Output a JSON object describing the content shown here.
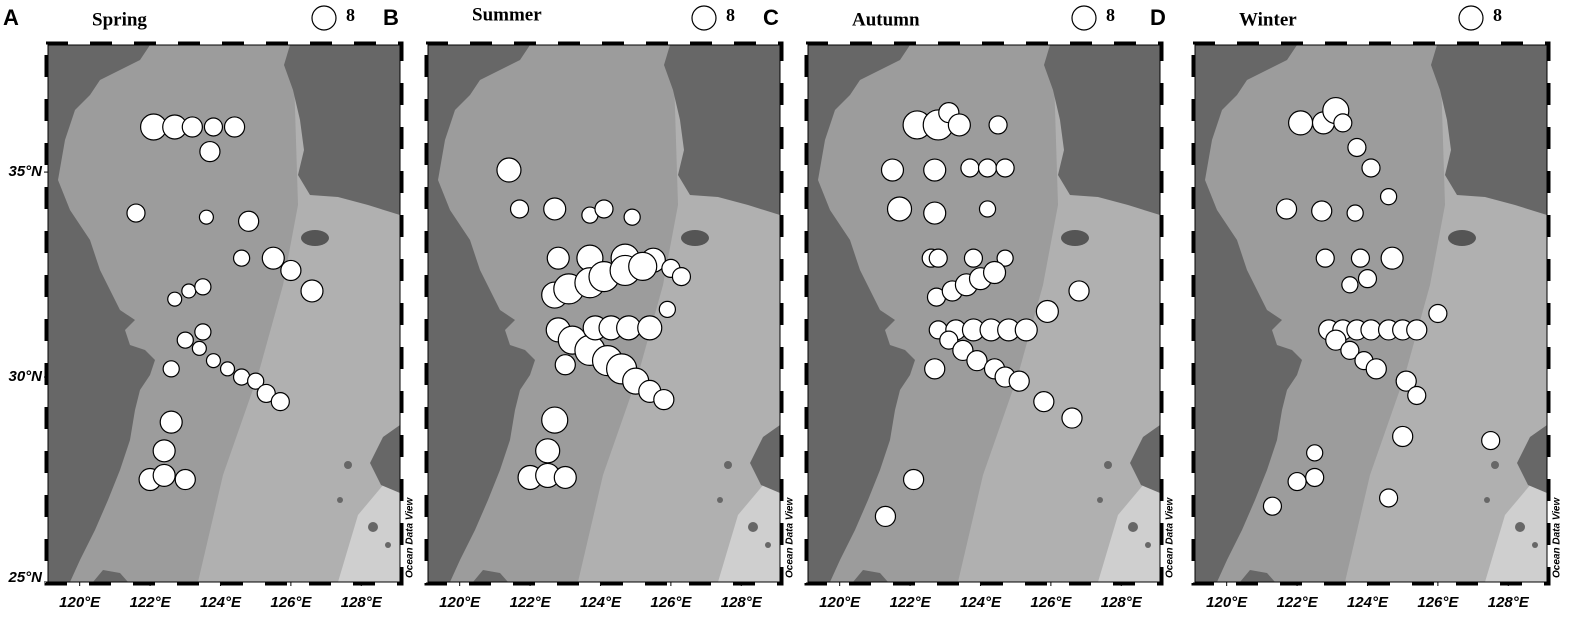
{
  "panels": [
    {
      "letter": "A",
      "title": "Spring",
      "legend_value": 8,
      "watermark": "Ocean Data View",
      "xlim": [
        119.1,
        129.1
      ],
      "ylim": [
        25,
        38.1
      ],
      "xticks": [
        {
          "value": 120,
          "label": "120°E"
        },
        {
          "value": 122,
          "label": "122°E"
        },
        {
          "value": 124,
          "label": "124°E"
        },
        {
          "value": 126,
          "label": "126°E"
        },
        {
          "value": 128,
          "label": "128°E"
        }
      ],
      "yticks": [
        {
          "value": 25,
          "label": "25°N"
        },
        {
          "value": 30,
          "label": "30°N"
        },
        {
          "value": 35,
          "label": "35°N"
        }
      ],
      "points": [
        {
          "lon": 122.1,
          "lat": 36.1,
          "value": 9.4
        },
        {
          "lon": 122.7,
          "lat": 36.1,
          "value": 8
        },
        {
          "lon": 123.2,
          "lat": 36.1,
          "value": 5.6
        },
        {
          "lon": 123.8,
          "lat": 36.1,
          "value": 4.5
        },
        {
          "lon": 124.4,
          "lat": 36.1,
          "value": 5.6
        },
        {
          "lon": 123.7,
          "lat": 35.5,
          "value": 5.6
        },
        {
          "lon": 121.6,
          "lat": 34.0,
          "value": 4.5
        },
        {
          "lon": 123.6,
          "lat": 33.9,
          "value": 2.7
        },
        {
          "lon": 124.8,
          "lat": 33.8,
          "value": 5.6
        },
        {
          "lon": 124.6,
          "lat": 32.9,
          "value": 3.6
        },
        {
          "lon": 125.5,
          "lat": 32.9,
          "value": 6.7
        },
        {
          "lon": 126.0,
          "lat": 32.6,
          "value": 5.6
        },
        {
          "lon": 126.6,
          "lat": 32.1,
          "value": 6.7
        },
        {
          "lon": 122.7,
          "lat": 31.9,
          "value": 2.7
        },
        {
          "lon": 123.1,
          "lat": 32.1,
          "value": 2.7
        },
        {
          "lon": 123.5,
          "lat": 32.2,
          "value": 3.6
        },
        {
          "lon": 123.5,
          "lat": 31.1,
          "value": 3.6
        },
        {
          "lon": 123.0,
          "lat": 30.9,
          "value": 3.6
        },
        {
          "lon": 123.4,
          "lat": 30.7,
          "value": 2.7
        },
        {
          "lon": 123.8,
          "lat": 30.4,
          "value": 2.7
        },
        {
          "lon": 124.2,
          "lat": 30.2,
          "value": 2.7
        },
        {
          "lon": 124.6,
          "lat": 30.0,
          "value": 3.6
        },
        {
          "lon": 125.0,
          "lat": 29.9,
          "value": 3.6
        },
        {
          "lon": 125.3,
          "lat": 29.6,
          "value": 4.5
        },
        {
          "lon": 125.7,
          "lat": 29.4,
          "value": 4.5
        },
        {
          "lon": 122.6,
          "lat": 30.2,
          "value": 3.6
        },
        {
          "lon": 122.6,
          "lat": 28.9,
          "value": 6.7
        },
        {
          "lon": 122.4,
          "lat": 28.2,
          "value": 6.7
        },
        {
          "lon": 122.0,
          "lat": 27.5,
          "value": 6.7
        },
        {
          "lon": 122.4,
          "lat": 27.6,
          "value": 6.7
        },
        {
          "lon": 123.0,
          "lat": 27.5,
          "value": 5.6
        }
      ]
    },
    {
      "letter": "B",
      "title": "Summer",
      "legend_value": 8,
      "watermark": "Ocean Data View",
      "xlim": [
        119.1,
        129.1
      ],
      "ylim": [
        25,
        38.1
      ],
      "xticks": [
        {
          "value": 120,
          "label": "120°E"
        },
        {
          "value": 122,
          "label": "122°E"
        },
        {
          "value": 124,
          "label": "124°E"
        },
        {
          "value": 126,
          "label": "126°E"
        },
        {
          "value": 128,
          "label": "128°E"
        }
      ],
      "points": [
        {
          "lon": 121.4,
          "lat": 35.05,
          "value": 8
        },
        {
          "lon": 121.7,
          "lat": 34.1,
          "value": 4.5
        },
        {
          "lon": 122.7,
          "lat": 34.1,
          "value": 6.7
        },
        {
          "lon": 123.7,
          "lat": 33.95,
          "value": 3.6
        },
        {
          "lon": 124.1,
          "lat": 34.1,
          "value": 4.5
        },
        {
          "lon": 124.9,
          "lat": 33.9,
          "value": 3.6
        },
        {
          "lon": 122.8,
          "lat": 32.9,
          "value": 6.7
        },
        {
          "lon": 123.7,
          "lat": 32.9,
          "value": 9.4
        },
        {
          "lon": 124.7,
          "lat": 32.9,
          "value": 10.9
        },
        {
          "lon": 125.5,
          "lat": 32.85,
          "value": 8
        },
        {
          "lon": 126.0,
          "lat": 32.65,
          "value": 4.5
        },
        {
          "lon": 126.3,
          "lat": 32.45,
          "value": 4.5
        },
        {
          "lon": 122.7,
          "lat": 32.0,
          "value": 9.4
        },
        {
          "lon": 123.1,
          "lat": 32.15,
          "value": 12.5
        },
        {
          "lon": 123.7,
          "lat": 32.3,
          "value": 12.5
        },
        {
          "lon": 124.1,
          "lat": 32.45,
          "value": 12.5
        },
        {
          "lon": 124.7,
          "lat": 32.6,
          "value": 12.5
        },
        {
          "lon": 125.2,
          "lat": 32.7,
          "value": 10.9
        },
        {
          "lon": 122.8,
          "lat": 31.15,
          "value": 8
        },
        {
          "lon": 123.2,
          "lat": 30.9,
          "value": 10.9
        },
        {
          "lon": 123.7,
          "lat": 30.65,
          "value": 12.5
        },
        {
          "lon": 124.2,
          "lat": 30.4,
          "value": 12.5
        },
        {
          "lon": 124.6,
          "lat": 30.2,
          "value": 12.5
        },
        {
          "lon": 125.0,
          "lat": 29.9,
          "value": 9.4
        },
        {
          "lon": 125.4,
          "lat": 29.65,
          "value": 6.7
        },
        {
          "lon": 125.8,
          "lat": 29.45,
          "value": 5.6
        },
        {
          "lon": 123.0,
          "lat": 30.3,
          "value": 5.6
        },
        {
          "lon": 123.85,
          "lat": 31.2,
          "value": 8
        },
        {
          "lon": 124.3,
          "lat": 31.2,
          "value": 8
        },
        {
          "lon": 124.8,
          "lat": 31.2,
          "value": 8
        },
        {
          "lon": 125.4,
          "lat": 31.2,
          "value": 8
        },
        {
          "lon": 125.9,
          "lat": 31.65,
          "value": 3.6
        },
        {
          "lon": 122.7,
          "lat": 28.95,
          "value": 9.4
        },
        {
          "lon": 122.5,
          "lat": 28.2,
          "value": 8
        },
        {
          "lon": 122.0,
          "lat": 27.55,
          "value": 8
        },
        {
          "lon": 122.5,
          "lat": 27.6,
          "value": 8
        },
        {
          "lon": 123.0,
          "lat": 27.55,
          "value": 6.7
        }
      ]
    },
    {
      "letter": "C",
      "title": "Autumn",
      "legend_value": 8,
      "watermark": "Ocean Data View",
      "xlim": [
        119.1,
        129.1
      ],
      "ylim": [
        25,
        38.1
      ],
      "xticks": [
        {
          "value": 120,
          "label": "120°E"
        },
        {
          "value": 122,
          "label": "122°E"
        },
        {
          "value": 124,
          "label": "124°E"
        },
        {
          "value": 126,
          "label": "126°E"
        },
        {
          "value": 128,
          "label": "128°E"
        }
      ],
      "points": [
        {
          "lon": 121.5,
          "lat": 35.05,
          "value": 6.7
        },
        {
          "lon": 122.7,
          "lat": 35.05,
          "value": 6.7
        },
        {
          "lon": 123.7,
          "lat": 35.1,
          "value": 4.5
        },
        {
          "lon": 124.2,
          "lat": 35.1,
          "value": 4.5
        },
        {
          "lon": 124.7,
          "lat": 35.1,
          "value": 4.5
        },
        {
          "lon": 122.2,
          "lat": 36.15,
          "value": 10.9
        },
        {
          "lon": 122.8,
          "lat": 36.15,
          "value": 12.5
        },
        {
          "lon": 123.1,
          "lat": 36.45,
          "value": 5.6
        },
        {
          "lon": 123.4,
          "lat": 36.15,
          "value": 6.7
        },
        {
          "lon": 124.5,
          "lat": 36.15,
          "value": 4.5
        },
        {
          "lon": 121.7,
          "lat": 34.1,
          "value": 8
        },
        {
          "lon": 122.7,
          "lat": 34.0,
          "value": 6.7
        },
        {
          "lon": 124.2,
          "lat": 34.1,
          "value": 3.6
        },
        {
          "lon": 122.6,
          "lat": 32.9,
          "value": 4.5
        },
        {
          "lon": 122.8,
          "lat": 32.9,
          "value": 4.5
        },
        {
          "lon": 123.8,
          "lat": 32.9,
          "value": 4.5
        },
        {
          "lon": 124.7,
          "lat": 32.9,
          "value": 3.6
        },
        {
          "lon": 122.75,
          "lat": 31.95,
          "value": 4.5
        },
        {
          "lon": 123.2,
          "lat": 32.1,
          "value": 5.6
        },
        {
          "lon": 123.6,
          "lat": 32.25,
          "value": 6.7
        },
        {
          "lon": 124.0,
          "lat": 32.4,
          "value": 6.7
        },
        {
          "lon": 124.4,
          "lat": 32.55,
          "value": 6.7
        },
        {
          "lon": 122.8,
          "lat": 31.15,
          "value": 4.5
        },
        {
          "lon": 123.3,
          "lat": 31.15,
          "value": 5.6
        },
        {
          "lon": 123.8,
          "lat": 31.15,
          "value": 6.7
        },
        {
          "lon": 124.3,
          "lat": 31.15,
          "value": 6.7
        },
        {
          "lon": 124.8,
          "lat": 31.15,
          "value": 6.7
        },
        {
          "lon": 125.3,
          "lat": 31.15,
          "value": 6.7
        },
        {
          "lon": 125.9,
          "lat": 31.6,
          "value": 6.7
        },
        {
          "lon": 126.8,
          "lat": 32.1,
          "value": 5.6
        },
        {
          "lon": 123.1,
          "lat": 30.9,
          "value": 4.5
        },
        {
          "lon": 123.5,
          "lat": 30.65,
          "value": 5.6
        },
        {
          "lon": 123.9,
          "lat": 30.4,
          "value": 5.6
        },
        {
          "lon": 124.4,
          "lat": 30.2,
          "value": 5.6
        },
        {
          "lon": 124.7,
          "lat": 30.0,
          "value": 5.6
        },
        {
          "lon": 125.1,
          "lat": 29.9,
          "value": 5.6
        },
        {
          "lon": 122.7,
          "lat": 30.2,
          "value": 5.6
        },
        {
          "lon": 125.8,
          "lat": 29.4,
          "value": 5.6
        },
        {
          "lon": 126.6,
          "lat": 29.0,
          "value": 5.6
        },
        {
          "lon": 122.1,
          "lat": 27.5,
          "value": 5.6
        },
        {
          "lon": 121.3,
          "lat": 26.6,
          "value": 5.6
        }
      ]
    },
    {
      "letter": "D",
      "title": "Winter",
      "legend_value": 8,
      "watermark": "Ocean Data View",
      "xlim": [
        119.1,
        129.1
      ],
      "ylim": [
        25,
        38.1
      ],
      "xticks": [
        {
          "value": 120,
          "label": "120°E"
        },
        {
          "value": 122,
          "label": "122°E"
        },
        {
          "value": 124,
          "label": "124°E"
        },
        {
          "value": 126,
          "label": "126°E"
        },
        {
          "value": 128,
          "label": "128°E"
        }
      ],
      "points": [
        {
          "lon": 122.1,
          "lat": 36.2,
          "value": 8
        },
        {
          "lon": 122.75,
          "lat": 36.2,
          "value": 6.7
        },
        {
          "lon": 123.1,
          "lat": 36.5,
          "value": 9.4
        },
        {
          "lon": 123.3,
          "lat": 36.2,
          "value": 4.5
        },
        {
          "lon": 123.7,
          "lat": 35.6,
          "value": 4.5
        },
        {
          "lon": 124.1,
          "lat": 35.1,
          "value": 4.5
        },
        {
          "lon": 124.6,
          "lat": 34.4,
          "value": 3.6
        },
        {
          "lon": 121.7,
          "lat": 34.1,
          "value": 5.6
        },
        {
          "lon": 122.7,
          "lat": 34.05,
          "value": 5.6
        },
        {
          "lon": 123.65,
          "lat": 34.0,
          "value": 3.6
        },
        {
          "lon": 122.8,
          "lat": 32.9,
          "value": 4.5
        },
        {
          "lon": 123.8,
          "lat": 32.9,
          "value": 4.5
        },
        {
          "lon": 124.7,
          "lat": 32.9,
          "value": 6.7
        },
        {
          "lon": 123.5,
          "lat": 32.25,
          "value": 3.6
        },
        {
          "lon": 124.0,
          "lat": 32.4,
          "value": 4.5
        },
        {
          "lon": 122.9,
          "lat": 31.15,
          "value": 5.6
        },
        {
          "lon": 123.3,
          "lat": 31.15,
          "value": 5.6
        },
        {
          "lon": 123.7,
          "lat": 31.15,
          "value": 5.6
        },
        {
          "lon": 124.1,
          "lat": 31.15,
          "value": 5.6
        },
        {
          "lon": 124.6,
          "lat": 31.15,
          "value": 5.6
        },
        {
          "lon": 125.0,
          "lat": 31.15,
          "value": 5.6
        },
        {
          "lon": 125.4,
          "lat": 31.15,
          "value": 5.6
        },
        {
          "lon": 126.0,
          "lat": 31.55,
          "value": 4.5
        },
        {
          "lon": 123.1,
          "lat": 30.9,
          "value": 5.6
        },
        {
          "lon": 123.5,
          "lat": 30.65,
          "value": 4.5
        },
        {
          "lon": 123.9,
          "lat": 30.4,
          "value": 4.5
        },
        {
          "lon": 124.25,
          "lat": 30.2,
          "value": 5.6
        },
        {
          "lon": 125.1,
          "lat": 29.9,
          "value": 5.6
        },
        {
          "lon": 125.4,
          "lat": 29.55,
          "value": 4.5
        },
        {
          "lon": 125.0,
          "lat": 28.55,
          "value": 5.6
        },
        {
          "lon": 127.5,
          "lat": 28.45,
          "value": 4.5
        },
        {
          "lon": 122.5,
          "lat": 28.15,
          "value": 3.6
        },
        {
          "lon": 122.0,
          "lat": 27.45,
          "value": 4.5
        },
        {
          "lon": 122.5,
          "lat": 27.55,
          "value": 4.5
        },
        {
          "lon": 124.6,
          "lat": 27.05,
          "value": 4.5
        },
        {
          "lon": 121.3,
          "lat": 26.85,
          "value": 4.5
        }
      ]
    }
  ]
}
